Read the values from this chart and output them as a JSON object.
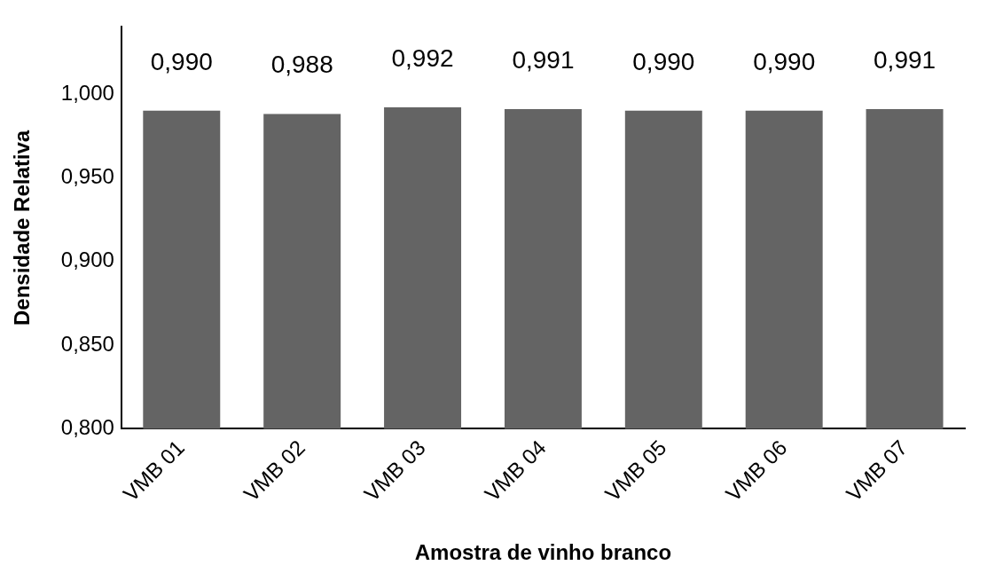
{
  "chart_data": {
    "type": "bar",
    "xlabel": "Amostra de vinho branco",
    "ylabel": "Densidade Relativa",
    "categories": [
      "VMB 01",
      "VMB 02",
      "VMB 03",
      "VMB 04",
      "VMB 05",
      "VMB 06",
      "VMB 07"
    ],
    "values": [
      0.99,
      0.988,
      0.992,
      0.991,
      0.99,
      0.99,
      0.991
    ],
    "value_labels": [
      "0,990",
      "0,988",
      "0,992",
      "0,991",
      "0,990",
      "0,990",
      "0,991"
    ],
    "color": "#646464",
    "ylim": [
      0.8,
      1.04
    ],
    "yticks": [
      {
        "value": 0.8,
        "label": "0,800"
      },
      {
        "value": 0.85,
        "label": "0,850"
      },
      {
        "value": 0.9,
        "label": "0,900"
      },
      {
        "value": 0.95,
        "label": "0,950"
      },
      {
        "value": 1.0,
        "label": "1,000"
      }
    ],
    "grid": false,
    "legend": false
  }
}
